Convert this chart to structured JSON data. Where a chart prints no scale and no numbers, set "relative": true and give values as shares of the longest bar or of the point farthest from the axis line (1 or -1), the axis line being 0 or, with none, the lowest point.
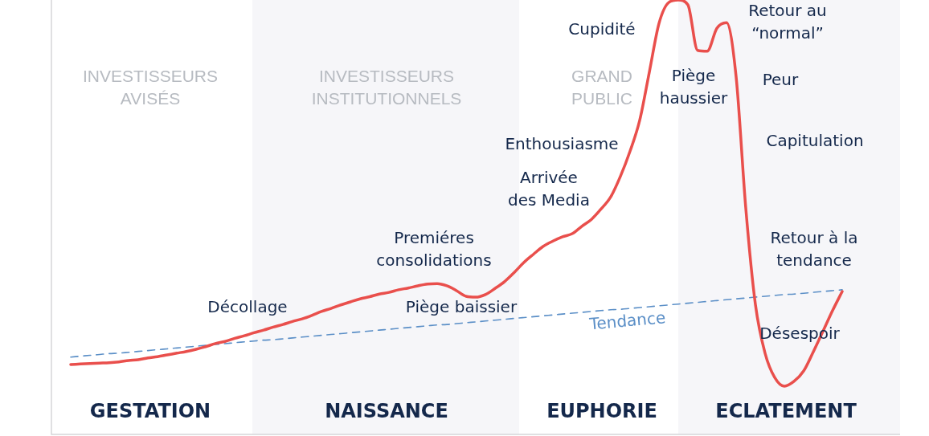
{
  "chart_data": {
    "type": "line",
    "relative": true,
    "marker": "none",
    "categories": [
      null,
      null,
      null,
      null,
      null,
      null,
      null,
      null,
      null,
      null,
      null,
      null,
      null,
      null,
      null,
      null,
      null,
      null,
      null,
      null,
      null,
      null,
      null,
      null,
      null,
      null,
      null,
      null,
      null,
      null,
      null,
      null,
      null,
      null,
      null,
      null,
      null,
      null,
      null,
      null,
      null,
      null,
      null,
      null,
      null,
      null,
      null,
      null,
      null,
      null,
      null,
      null,
      null,
      null,
      null,
      null,
      null,
      null,
      null,
      null,
      null,
      null,
      null,
      null,
      null,
      null,
      null,
      null,
      null,
      null,
      null,
      null,
      null,
      null,
      null,
      null,
      null,
      null,
      null,
      null,
      null,
      null,
      null,
      null,
      null,
      null,
      null,
      null,
      null
    ],
    "series": [
      {
        "color": "#e94f4c",
        "values": [
          null,
          null,
          0.161,
          0.162,
          0.163,
          0.164,
          0.165,
          0.167,
          0.17,
          0.172,
          0.176,
          0.179,
          0.183,
          0.187,
          0.191,
          0.196,
          0.202,
          0.209,
          0.214,
          0.221,
          0.227,
          0.234,
          0.24,
          0.247,
          0.253,
          0.26,
          0.266,
          0.274,
          0.283,
          0.29,
          0.298,
          0.305,
          0.312,
          0.317,
          0.323,
          0.327,
          0.333,
          0.337,
          0.342,
          0.346,
          0.347,
          0.342,
          0.331,
          0.318,
          0.316,
          0.322,
          0.336,
          0.352,
          0.373,
          0.396,
          0.415,
          0.433,
          0.445,
          0.455,
          0.462,
          0.479,
          0.495,
          0.519,
          0.547,
          0.594,
          0.652,
          0.723,
          0.834,
          0.946,
          0.994,
          1,
          0.989,
          0.884,
          0.882,
          0.935,
          0.948,
          0.823,
          0.521,
          0.299,
          0.187,
          0.131,
          0.111,
          0.122,
          0.146,
          0.19,
          0.237,
          0.285,
          0.329,
          null,
          null,
          null,
          null,
          null,
          null
        ]
      },
      {
        "name": "Tendance",
        "color": "#5b8fc7",
        "line_style": "dashed",
        "values": [
          null,
          null,
          0.178,
          0.18,
          0.182,
          0.184,
          0.186,
          0.187,
          0.189,
          0.191,
          0.193,
          0.195,
          0.197,
          0.199,
          0.201,
          0.203,
          0.205,
          0.207,
          0.209,
          0.211,
          0.213,
          0.215,
          0.217,
          0.218,
          0.22,
          0.222,
          0.224,
          0.226,
          0.228,
          0.23,
          0.232,
          0.234,
          0.236,
          0.238,
          0.24,
          0.242,
          0.244,
          0.246,
          0.248,
          0.25,
          0.252,
          0.253,
          0.255,
          0.257,
          0.259,
          0.261,
          0.263,
          0.265,
          0.267,
          0.269,
          0.271,
          0.273,
          0.275,
          0.277,
          0.279,
          0.281,
          0.283,
          0.285,
          0.287,
          0.288,
          0.29,
          0.292,
          0.294,
          0.296,
          0.298,
          0.3,
          0.302,
          0.304,
          0.306,
          0.308,
          0.31,
          0.312,
          0.314,
          0.316,
          0.318,
          0.32,
          0.322,
          0.323,
          0.325,
          0.327,
          0.329,
          0.331,
          0.333,
          null,
          null,
          null,
          null,
          null,
          null
        ]
      }
    ],
    "annotations": [
      "INVESTISSEURS\nAVISÉS",
      "INVESTISSEURS\nINSTITUTIONNELS",
      "GRAND\nPUBLIC",
      "Cupidité",
      "Piège\nhaussier",
      "Retour au\n“normal”",
      "Peur",
      "Capitulation",
      "Enthousiasme",
      "Arrivée\ndes Media",
      "Premiéres\nconsolidations",
      "Retour à la\ntendance",
      "Décollage",
      "Piège baissier",
      "Désespoir",
      "GESTATION",
      "NAISSANCE",
      "EUPHORIE",
      "ECLATEMENT"
    ]
  }
}
